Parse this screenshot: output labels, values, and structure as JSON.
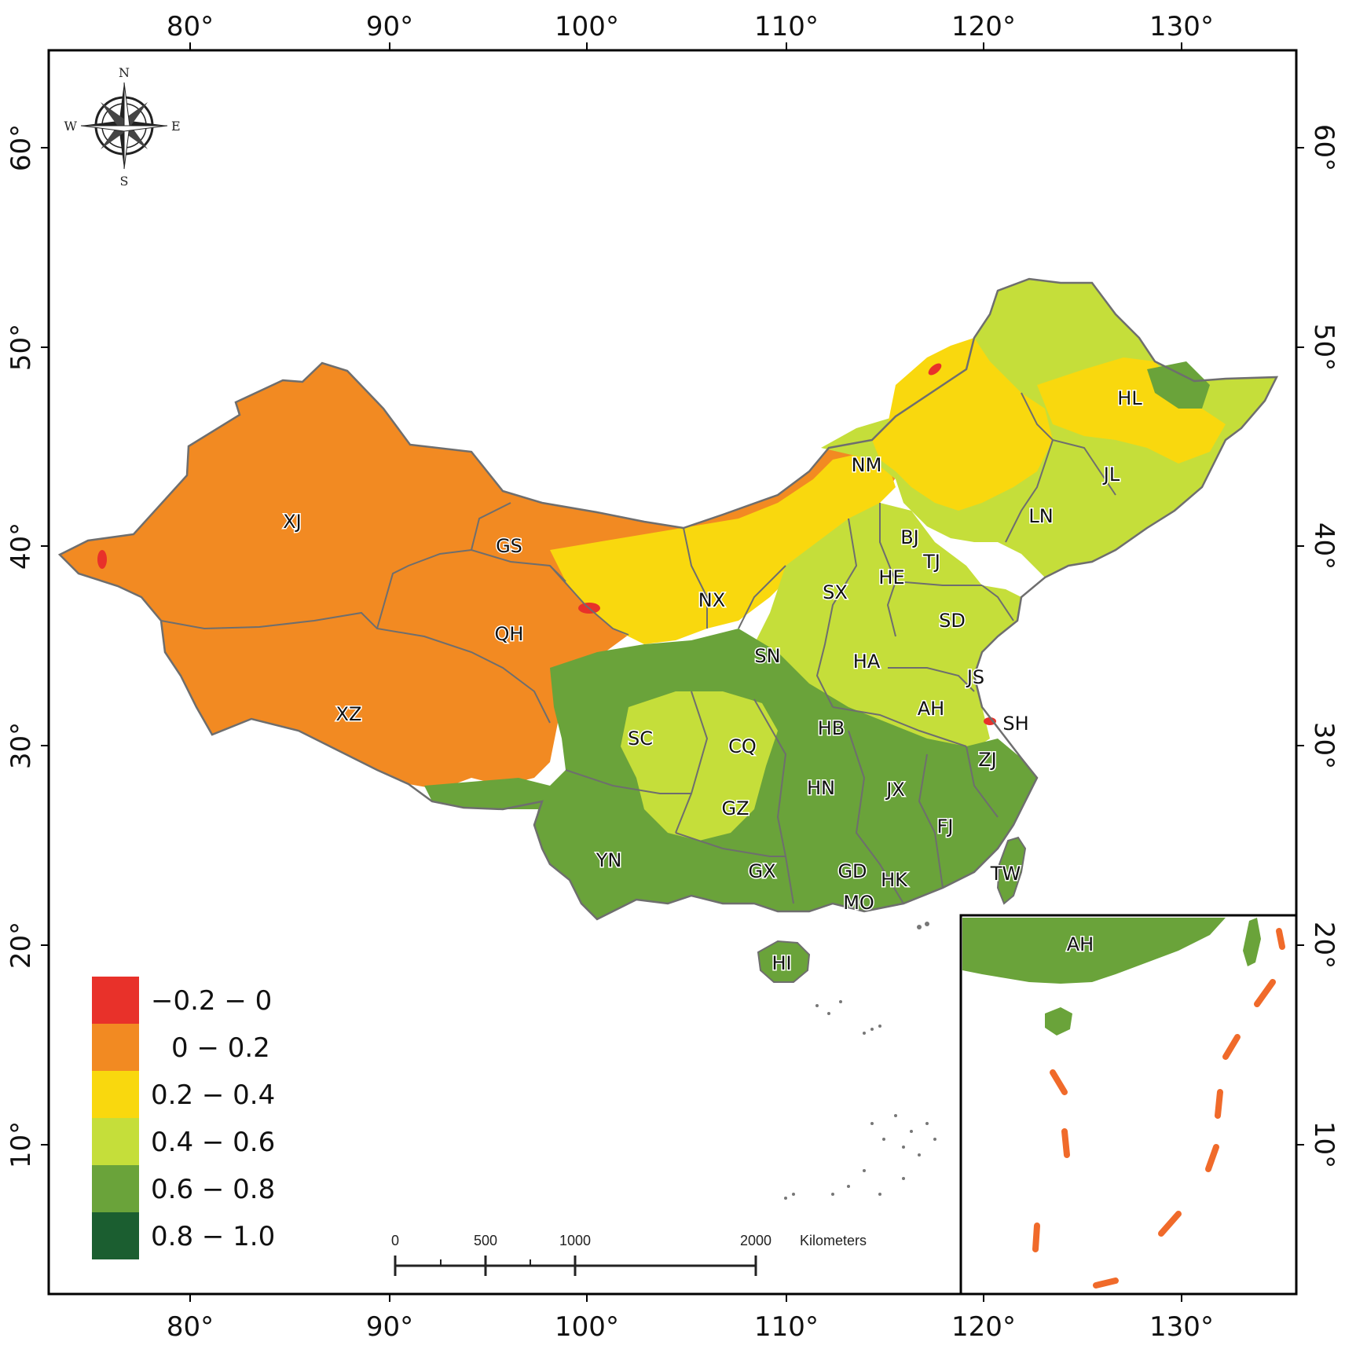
{
  "map": {
    "longitude_ticks": [
      "80°",
      "90°",
      "100°",
      "110°",
      "120°",
      "130°"
    ],
    "latitude_ticks": [
      "60°",
      "50°",
      "40°",
      "30°",
      "20°",
      "10°"
    ],
    "compass": {
      "n": "N",
      "s": "S",
      "e": "E",
      "w": "W"
    },
    "legend": [
      {
        "label": "−0.2 − 0",
        "color": "#e8312a"
      },
      {
        "label": "0 − 0.2",
        "color": "#f28a22"
      },
      {
        "label": "0.2 − 0.4",
        "color": "#f9d80e"
      },
      {
        "label": "0.4 − 0.6",
        "color": "#c5de3a"
      },
      {
        "label": "0.6 − 0.8",
        "color": "#6aa33a"
      },
      {
        "label": "0.8 − 1.0",
        "color": "#1b5e30"
      }
    ],
    "scale_bar": {
      "labels": [
        "0",
        "500",
        "1000",
        "2000"
      ],
      "unit": "Kilometers"
    },
    "provinces": [
      "XJ",
      "XZ",
      "QH",
      "GS",
      "NM",
      "NX",
      "SN",
      "SC",
      "CQ",
      "YN",
      "GZ",
      "GX",
      "GD",
      "HK",
      "MO",
      "HI",
      "HN",
      "HB",
      "JX",
      "FJ",
      "ZJ",
      "SH",
      "JS",
      "AH",
      "HA",
      "SD",
      "SX",
      "HE",
      "BJ",
      "TJ",
      "LN",
      "JL",
      "HL",
      "TW"
    ],
    "inset_label": "AH",
    "colors": {
      "boundary": "#6e6e6e",
      "frame": "#000000",
      "nine_dash": "#f06a2a",
      "islands": "#777777"
    }
  }
}
